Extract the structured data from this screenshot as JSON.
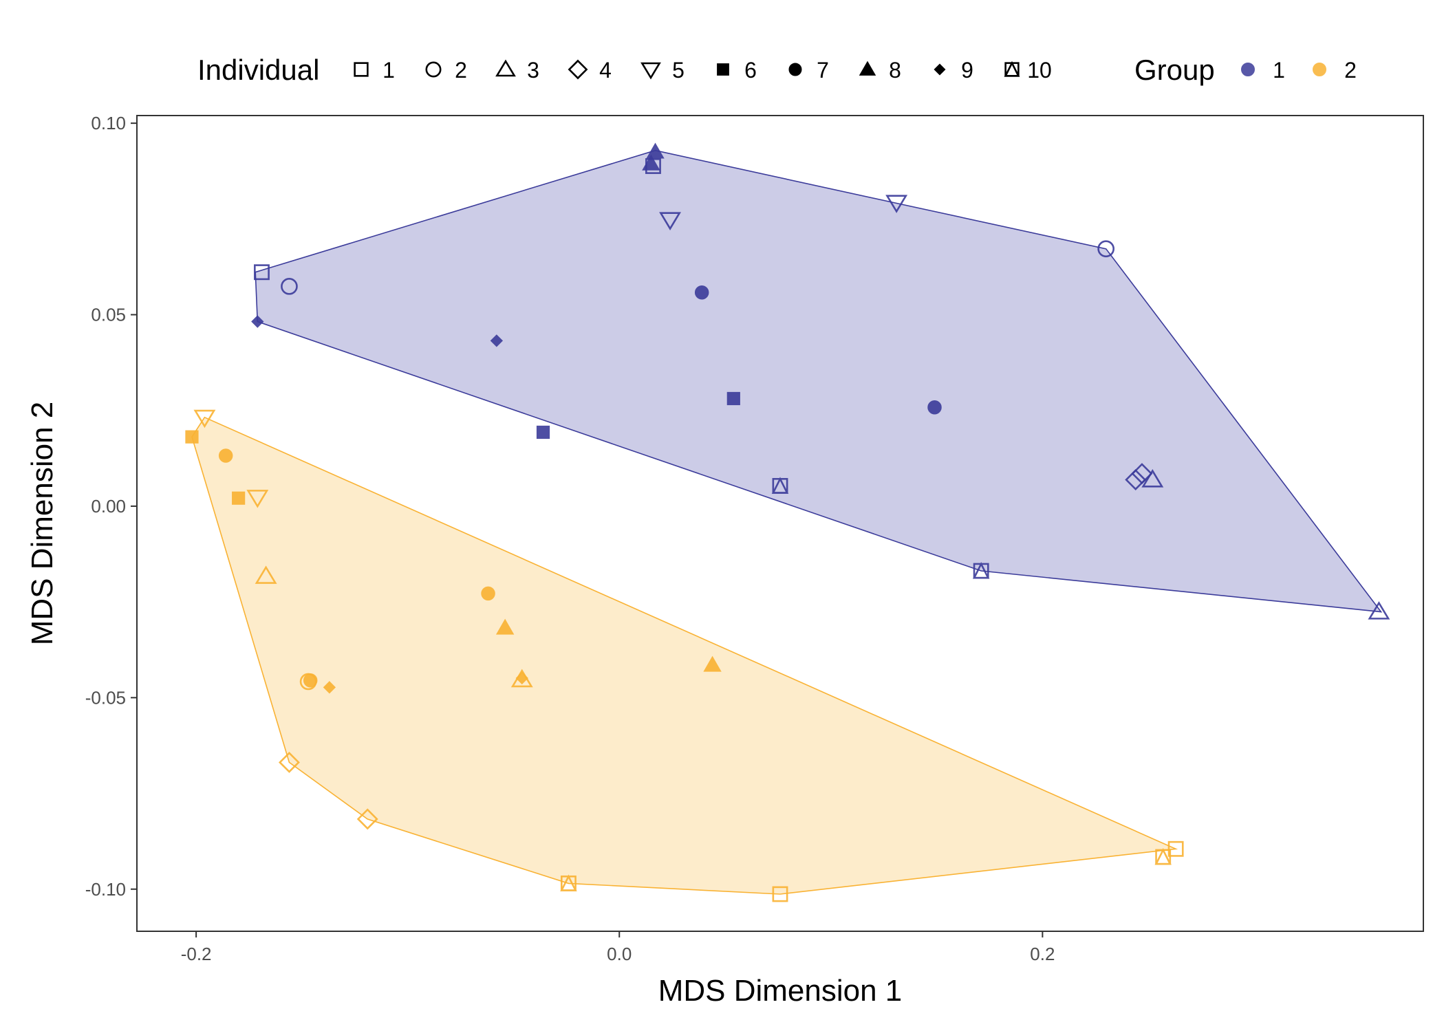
{
  "chart_data": {
    "type": "scatter",
    "xlabel": "MDS Dimension 1",
    "ylabel": "MDS Dimension 2",
    "xlim": [
      -0.228,
      0.38
    ],
    "ylim": [
      -0.111,
      0.102
    ],
    "x_ticks": [
      {
        "value": -0.2,
        "label": "-0.2"
      },
      {
        "value": 0.0,
        "label": "0.0"
      },
      {
        "value": 0.2,
        "label": "0.2"
      }
    ],
    "y_ticks": [
      {
        "value": 0.1,
        "label": "0.10"
      },
      {
        "value": 0.05,
        "label": "0.05"
      },
      {
        "value": 0.0,
        "label": "0.00"
      },
      {
        "value": -0.05,
        "label": "-0.05"
      },
      {
        "value": -0.1,
        "label": "-0.10"
      }
    ],
    "grid": false,
    "legend_position": "top",
    "legend_individual": {
      "title": "Individual",
      "items": [
        {
          "label": "1",
          "shape": "square-open"
        },
        {
          "label": "2",
          "shape": "circle-open"
        },
        {
          "label": "3",
          "shape": "triangle-open"
        },
        {
          "label": "4",
          "shape": "diamond-open"
        },
        {
          "label": "5",
          "shape": "triangle-down-open"
        },
        {
          "label": "6",
          "shape": "square-filled"
        },
        {
          "label": "7",
          "shape": "circle-filled"
        },
        {
          "label": "8",
          "shape": "triangle-filled"
        },
        {
          "label": "9",
          "shape": "diamond-filled-small"
        },
        {
          "label": "10",
          "shape": "square-triangle-open"
        }
      ]
    },
    "legend_group": {
      "title": "Group",
      "items": [
        {
          "label": "1",
          "color": "#3b3b9a"
        },
        {
          "label": "2",
          "color": "#f9b233"
        }
      ]
    },
    "series": [
      {
        "name": "1",
        "color": "#3b3b9a",
        "fill": "#c9c9e6",
        "hull": [
          [
            -0.172,
            0.0611
          ],
          [
            0.017,
            0.0929
          ],
          [
            0.132,
            0.079
          ],
          [
            0.23,
            0.0672
          ],
          [
            0.36,
            -0.0276
          ],
          [
            0.171,
            -0.0169
          ],
          [
            -0.171,
            0.0482
          ],
          [
            -0.172,
            0.0611
          ]
        ],
        "points": [
          {
            "x": -0.169,
            "y": 0.0611,
            "ind": 1
          },
          {
            "x": -0.156,
            "y": 0.0574,
            "ind": 2
          },
          {
            "x": -0.171,
            "y": 0.0482,
            "ind": 9
          },
          {
            "x": -0.058,
            "y": 0.0432,
            "ind": 9
          },
          {
            "x": -0.036,
            "y": 0.0193,
            "ind": 6
          },
          {
            "x": 0.015,
            "y": 0.0894,
            "ind": 8
          },
          {
            "x": 0.017,
            "y": 0.0925,
            "ind": 8
          },
          {
            "x": 0.016,
            "y": 0.0888,
            "ind": 1
          },
          {
            "x": 0.024,
            "y": 0.0748,
            "ind": 5
          },
          {
            "x": 0.039,
            "y": 0.0558,
            "ind": 7
          },
          {
            "x": 0.054,
            "y": 0.0281,
            "ind": 6
          },
          {
            "x": 0.076,
            "y": 0.0053,
            "ind": 10
          },
          {
            "x": 0.131,
            "y": 0.0793,
            "ind": 5
          },
          {
            "x": 0.149,
            "y": 0.0258,
            "ind": 7
          },
          {
            "x": 0.171,
            "y": -0.0169,
            "ind": 10
          },
          {
            "x": 0.23,
            "y": 0.0672,
            "ind": 2
          },
          {
            "x": 0.244,
            "y": 0.0069,
            "ind": 4
          },
          {
            "x": 0.247,
            "y": 0.0085,
            "ind": 4
          },
          {
            "x": 0.252,
            "y": 0.0069,
            "ind": 3
          },
          {
            "x": 0.359,
            "y": -0.0276,
            "ind": 3
          }
        ]
      },
      {
        "name": "2",
        "color": "#f9b233",
        "fill": "#fdebc8",
        "hull": [
          [
            -0.196,
            0.0232
          ],
          [
            0.263,
            -0.0895
          ],
          [
            0.076,
            -0.1013
          ],
          [
            -0.024,
            -0.0985
          ],
          [
            -0.119,
            -0.0817
          ],
          [
            -0.156,
            -0.0669
          ],
          [
            -0.202,
            0.0181
          ],
          [
            -0.196,
            0.0232
          ]
        ],
        "points": [
          {
            "x": -0.202,
            "y": 0.0181,
            "ind": 6
          },
          {
            "x": -0.196,
            "y": 0.0232,
            "ind": 5
          },
          {
            "x": -0.186,
            "y": 0.0132,
            "ind": 7
          },
          {
            "x": -0.18,
            "y": 0.0021,
            "ind": 6
          },
          {
            "x": -0.171,
            "y": 0.0023,
            "ind": 5
          },
          {
            "x": -0.167,
            "y": -0.0183,
            "ind": 3
          },
          {
            "x": -0.147,
            "y": -0.0458,
            "ind": 2
          },
          {
            "x": -0.146,
            "y": -0.0455,
            "ind": 7
          },
          {
            "x": -0.137,
            "y": -0.0473,
            "ind": 9
          },
          {
            "x": -0.156,
            "y": -0.0669,
            "ind": 4
          },
          {
            "x": -0.119,
            "y": -0.0817,
            "ind": 4
          },
          {
            "x": -0.062,
            "y": -0.0228,
            "ind": 7
          },
          {
            "x": -0.054,
            "y": -0.0318,
            "ind": 8
          },
          {
            "x": -0.046,
            "y": -0.0449,
            "ind": 9
          },
          {
            "x": -0.046,
            "y": -0.0453,
            "ind": 3
          },
          {
            "x": -0.024,
            "y": -0.0985,
            "ind": 10
          },
          {
            "x": 0.044,
            "y": -0.0415,
            "ind": 8
          },
          {
            "x": 0.076,
            "y": -0.1013,
            "ind": 1
          },
          {
            "x": 0.257,
            "y": -0.0916,
            "ind": 10
          },
          {
            "x": 0.263,
            "y": -0.0895,
            "ind": 1
          }
        ]
      }
    ]
  }
}
